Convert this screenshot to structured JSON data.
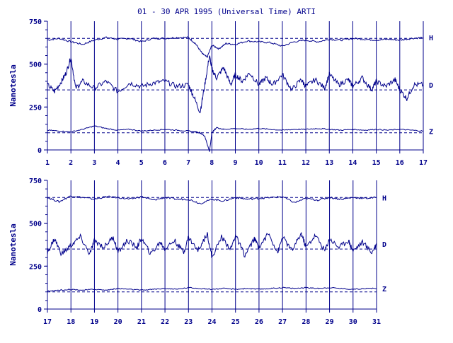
{
  "chart_data": {
    "type": "line",
    "title": "01 - 30 APR 1995 (Universal Time) ARTI",
    "ylabel": "Nanotesla",
    "color": "#00008b",
    "panels": [
      {
        "name": "panel-top",
        "xlim": [
          1,
          17
        ],
        "x_ticks": [
          1,
          2,
          3,
          4,
          5,
          6,
          7,
          8,
          9,
          10,
          11,
          12,
          13,
          14,
          15,
          16,
          17
        ],
        "ylim": [
          0,
          750
        ],
        "y_ticks": [
          0,
          250,
          500,
          750
        ],
        "baselines": [
          650,
          350,
          100
        ],
        "series": [
          {
            "name": "H",
            "x": [
              1,
              1.5,
              2,
              2.5,
              3,
              3.5,
              4,
              4.5,
              5,
              5.5,
              6,
              6.5,
              7,
              7.3,
              7.6,
              7.8,
              8,
              8.3,
              8.6,
              9,
              9.5,
              10,
              10.5,
              11,
              11.5,
              12,
              12.5,
              13,
              13.5,
              14,
              14.5,
              15,
              15.5,
              16,
              16.5,
              17
            ],
            "y": [
              640,
              650,
              630,
              615,
              640,
              655,
              645,
              650,
              630,
              650,
              650,
              655,
              655,
              620,
              560,
              540,
              610,
              590,
              620,
              615,
              635,
              630,
              625,
              605,
              630,
              640,
              630,
              645,
              640,
              650,
              645,
              640,
              645,
              640,
              650,
              655
            ]
          },
          {
            "name": "D",
            "x": [
              1,
              1.3,
              1.6,
              1.8,
              2,
              2.2,
              2.5,
              3,
              3.5,
              4,
              4.5,
              5,
              5.5,
              6,
              6.5,
              7,
              7.2,
              7.5,
              7.7,
              7.9,
              8,
              8.2,
              8.5,
              8.8,
              9,
              9.3,
              9.6,
              10,
              10.3,
              10.6,
              11,
              11.4,
              11.8,
              12,
              12.4,
              12.8,
              13,
              13.4,
              13.8,
              14,
              14.4,
              14.8,
              15,
              15.4,
              15.8,
              16,
              16.3,
              16.6,
              17
            ],
            "y": [
              380,
              340,
              400,
              450,
              540,
              360,
              400,
              360,
              400,
              340,
              390,
              370,
              390,
              400,
              370,
              380,
              320,
              220,
              380,
              550,
              470,
              420,
              480,
              380,
              440,
              400,
              450,
              380,
              420,
              380,
              440,
              350,
              410,
              370,
              410,
              360,
              440,
              380,
              410,
              370,
              420,
              350,
              400,
              370,
              410,
              350,
              300,
              380,
              380
            ]
          },
          {
            "name": "Z",
            "x": [
              1,
              1.5,
              2,
              2.5,
              3,
              3.5,
              4,
              4.5,
              5,
              5.5,
              6,
              6.5,
              7,
              7.3,
              7.5,
              7.7,
              7.9,
              8,
              8.2,
              8.5,
              9,
              9.5,
              10,
              10.5,
              11,
              11.5,
              12,
              12.5,
              13,
              13.5,
              14,
              14.5,
              15,
              15.5,
              16,
              16.5,
              17
            ],
            "y": [
              115,
              110,
              105,
              120,
              140,
              125,
              115,
              120,
              110,
              115,
              120,
              115,
              110,
              105,
              100,
              80,
              -10,
              100,
              130,
              120,
              125,
              120,
              125,
              120,
              115,
              120,
              120,
              125,
              120,
              115,
              120,
              115,
              120,
              115,
              120,
              115,
              110
            ]
          }
        ]
      },
      {
        "name": "panel-bottom",
        "xlim": [
          17,
          31
        ],
        "x_ticks": [
          17,
          18,
          19,
          20,
          21,
          22,
          23,
          24,
          25,
          26,
          27,
          28,
          29,
          30,
          31
        ],
        "ylim": [
          0,
          750
        ],
        "y_ticks": [
          0,
          250,
          500,
          750
        ],
        "baselines": [
          650,
          350,
          100
        ],
        "series": [
          {
            "name": "H",
            "x": [
              17,
              17.5,
              18,
              18.5,
              19,
              19.5,
              20,
              20.5,
              21,
              21.5,
              22,
              22.5,
              23,
              23.5,
              24,
              24.5,
              25,
              25.5,
              26,
              26.5,
              27,
              27.5,
              28,
              28.5,
              29,
              29.5,
              30,
              30.5,
              31
            ],
            "y": [
              650,
              625,
              660,
              650,
              640,
              655,
              650,
              640,
              655,
              635,
              650,
              640,
              640,
              615,
              640,
              630,
              650,
              640,
              645,
              650,
              655,
              620,
              645,
              635,
              650,
              640,
              650,
              645,
              650
            ]
          },
          {
            "name": "D",
            "x": [
              17,
              17.3,
              17.6,
              18,
              18.4,
              18.8,
              19,
              19.4,
              19.8,
              20,
              20.4,
              20.8,
              21,
              21.4,
              21.8,
              22,
              22.4,
              22.8,
              23,
              23.4,
              23.8,
              24,
              24.4,
              24.8,
              25,
              25.4,
              25.8,
              26,
              26.4,
              26.8,
              27,
              27.4,
              27.8,
              28,
              28.4,
              28.8,
              29,
              29.4,
              29.8,
              30,
              30.4,
              30.8,
              31
            ],
            "y": [
              330,
              410,
              320,
              370,
              420,
              320,
              400,
              360,
              420,
              330,
              400,
              360,
              410,
              320,
              390,
              350,
              400,
              330,
              420,
              340,
              440,
              300,
              420,
              350,
              430,
              310,
              410,
              360,
              440,
              330,
              420,
              340,
              440,
              360,
              430,
              340,
              410,
              360,
              400,
              340,
              390,
              330,
              380
            ]
          },
          {
            "name": "Z",
            "x": [
              17,
              17.5,
              18,
              18.5,
              19,
              19.5,
              20,
              20.5,
              21,
              21.5,
              22,
              22.5,
              23,
              23.5,
              24,
              24.5,
              25,
              25.5,
              26,
              26.5,
              27,
              27.5,
              28,
              28.5,
              29,
              29.5,
              30,
              30.5,
              31
            ],
            "y": [
              105,
              110,
              115,
              110,
              115,
              110,
              120,
              115,
              110,
              115,
              120,
              115,
              125,
              120,
              115,
              120,
              115,
              120,
              115,
              120,
              125,
              120,
              125,
              120,
              125,
              120,
              115,
              120,
              120
            ]
          }
        ]
      }
    ]
  }
}
